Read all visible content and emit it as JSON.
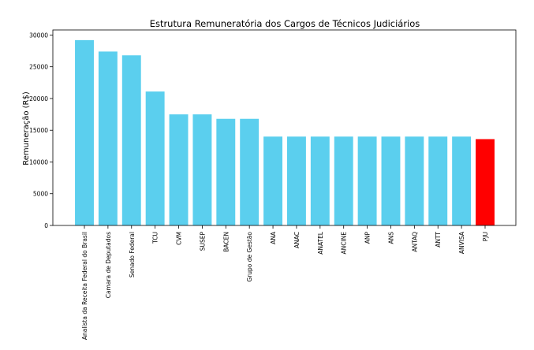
{
  "chart_data": {
    "type": "bar",
    "title": "Estrutura Remuneratória dos Cargos de Técnicos Judiciários",
    "xlabel": "",
    "ylabel": "Remuneração (R$)",
    "ylim": [
      0,
      30800
    ],
    "yticks": [
      0,
      5000,
      10000,
      15000,
      20000,
      25000,
      30000
    ],
    "grid": false,
    "categories": [
      "Analista da Receita Federal do Brasil",
      "Camara de Deputados",
      "Senado Federal",
      "TCU",
      "CVM",
      "SUSEP",
      "BACEN",
      "Grupo de Gestão",
      "ANA",
      "ANAC",
      "ANATEL",
      "ANCINE",
      "ANP",
      "ANS",
      "ANTAQ",
      "ANTT",
      "ANVISA",
      "PJU"
    ],
    "values": [
      29200,
      27400,
      26800,
      21100,
      17500,
      17500,
      16800,
      16800,
      14000,
      14000,
      14000,
      14000,
      14000,
      14000,
      14000,
      14000,
      14000,
      13600
    ],
    "colors": [
      "#5bcfee",
      "#5bcfee",
      "#5bcfee",
      "#5bcfee",
      "#5bcfee",
      "#5bcfee",
      "#5bcfee",
      "#5bcfee",
      "#5bcfee",
      "#5bcfee",
      "#5bcfee",
      "#5bcfee",
      "#5bcfee",
      "#5bcfee",
      "#5bcfee",
      "#5bcfee",
      "#5bcfee",
      "#ff0000"
    ]
  }
}
